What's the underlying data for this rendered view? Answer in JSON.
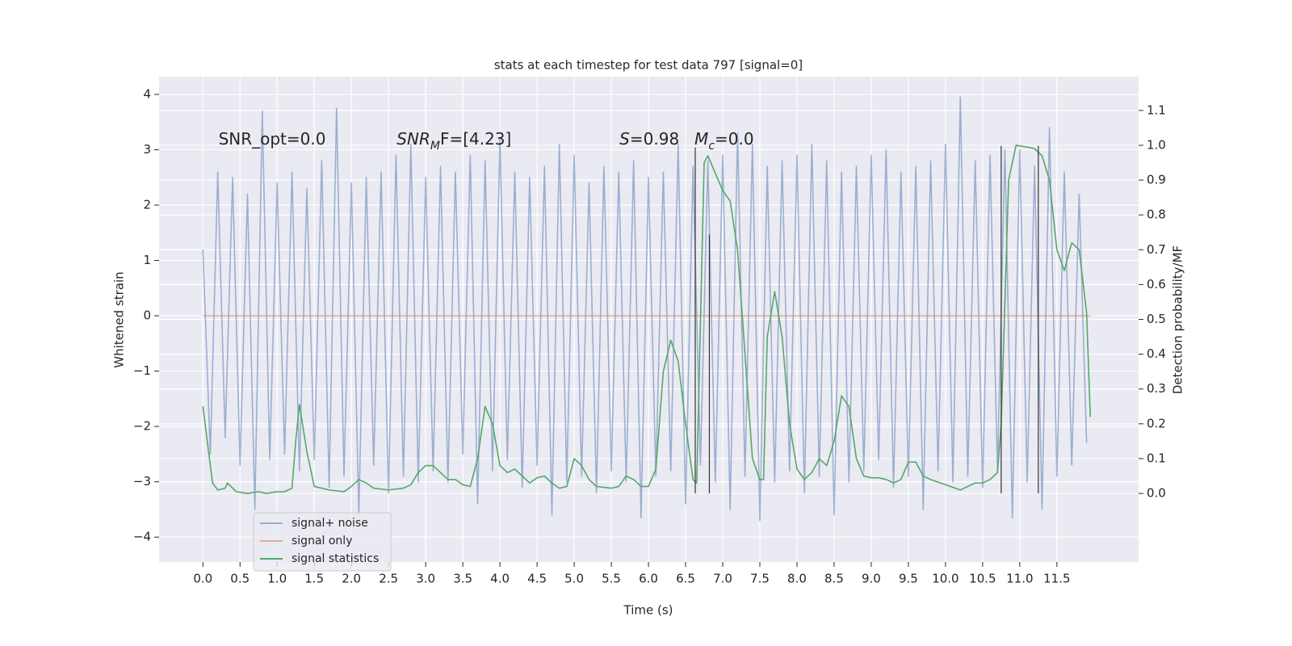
{
  "chart_data": {
    "type": "line",
    "title": "stats at each timestep for test data 797 [signal=0]",
    "xlabel": "Time (s)",
    "ylabel": "Whitened strain",
    "y2label": "Detection probability/MF",
    "xlim": [
      -0.59,
      12.6
    ],
    "ylim": [
      -4.45,
      4.32
    ],
    "y2lim": [
      -0.197,
      1.197
    ],
    "xticks": [
      {
        "value": 0,
        "label": "0.0"
      },
      {
        "value": 0.5,
        "label": "0.5"
      },
      {
        "value": 1,
        "label": "1.0"
      },
      {
        "value": 1.5,
        "label": "1.5"
      },
      {
        "value": 2,
        "label": "2.0"
      },
      {
        "value": 2.5,
        "label": "2.5"
      },
      {
        "value": 3,
        "label": "3.0"
      },
      {
        "value": 3.5,
        "label": "3.5"
      },
      {
        "value": 4,
        "label": "4.0"
      },
      {
        "value": 4.5,
        "label": "4.5"
      },
      {
        "value": 5,
        "label": "5.0"
      },
      {
        "value": 5.5,
        "label": "5.5"
      },
      {
        "value": 6,
        "label": "6.0"
      },
      {
        "value": 6.5,
        "label": "6.5"
      },
      {
        "value": 7,
        "label": "7.0"
      },
      {
        "value": 7.5,
        "label": "7.5"
      },
      {
        "value": 8,
        "label": "8.0"
      },
      {
        "value": 8.5,
        "label": "8.5"
      },
      {
        "value": 9,
        "label": "9.0"
      },
      {
        "value": 9.5,
        "label": "9.5"
      },
      {
        "value": 10,
        "label": "10.0"
      },
      {
        "value": 10.5,
        "label": "10.5"
      },
      {
        "value": 11,
        "label": "11.0"
      },
      {
        "value": 11.5,
        "label": "11.5"
      }
    ],
    "yticks": [
      {
        "value": -4,
        "label": "−4"
      },
      {
        "value": -3,
        "label": "−3"
      },
      {
        "value": -2,
        "label": "−2"
      },
      {
        "value": -1,
        "label": "−1"
      },
      0,
      1,
      2,
      3,
      4
    ],
    "y2ticks": [
      {
        "value": 0,
        "label": "0.0"
      },
      {
        "value": 0.1,
        "label": "0.1"
      },
      {
        "value": 0.2,
        "label": "0.2"
      },
      {
        "value": 0.3,
        "label": "0.3"
      },
      {
        "value": 0.4,
        "label": "0.4"
      },
      {
        "value": 0.5,
        "label": "0.5"
      },
      {
        "value": 0.6,
        "label": "0.6"
      },
      {
        "value": 0.7,
        "label": "0.7"
      },
      {
        "value": 0.8,
        "label": "0.8"
      },
      {
        "value": 0.9,
        "label": "0.9"
      },
      {
        "value": 1,
        "label": "1.0"
      },
      {
        "value": 1.1,
        "label": "1.1"
      }
    ],
    "grid": true,
    "legend": "lower left",
    "series": [
      {
        "name": "signal+ noise",
        "color": "#4c72b0",
        "alpha": 0.5,
        "x": [
          0,
          0.1,
          0.2,
          0.3,
          0.4,
          0.5,
          0.6,
          0.7,
          0.8,
          0.9,
          1,
          1.1,
          1.2,
          1.3,
          1.4,
          1.5,
          1.6,
          1.7,
          1.8,
          1.9,
          2,
          2.1,
          2.2,
          2.3,
          2.4,
          2.5,
          2.6,
          2.7,
          2.8,
          2.9,
          3,
          3.1,
          3.2,
          3.3,
          3.4,
          3.5,
          3.6,
          3.7,
          3.8,
          3.9,
          4,
          4.1,
          4.2,
          4.3,
          4.4,
          4.5,
          4.6,
          4.7,
          4.8,
          4.9,
          5,
          5.1,
          5.2,
          5.3,
          5.4,
          5.5,
          5.6,
          5.7,
          5.8,
          5.9,
          6,
          6.1,
          6.2,
          6.3,
          6.4,
          6.5,
          6.6,
          6.7,
          6.8,
          6.9,
          7,
          7.1,
          7.2,
          7.3,
          7.4,
          7.5,
          7.6,
          7.7,
          7.8,
          7.9,
          8,
          8.1,
          8.2,
          8.3,
          8.4,
          8.5,
          8.6,
          8.7,
          8.8,
          8.9,
          9,
          9.1,
          9.2,
          9.3,
          9.4,
          9.5,
          9.6,
          9.7,
          9.8,
          9.9,
          10,
          10.1,
          10.2,
          10.3,
          10.4,
          10.5,
          10.6,
          10.7,
          10.8,
          10.9,
          11,
          11.1,
          11.2,
          11.3,
          11.4,
          11.5,
          11.6,
          11.7,
          11.8,
          11.9
        ],
        "values": [
          1.2,
          -2.5,
          2.6,
          -2.2,
          2.5,
          -2.7,
          2.2,
          -3.5,
          3.7,
          -2.6,
          2.4,
          -2.5,
          2.6,
          -2.8,
          2.3,
          -2.6,
          2.8,
          -3.1,
          3.75,
          -2.9,
          2.4,
          -3.6,
          2.5,
          -2.7,
          2.6,
          -3.2,
          2.9,
          -2.9,
          3.1,
          -3.0,
          2.5,
          -2.8,
          2.7,
          -3.0,
          2.6,
          -2.5,
          2.9,
          -3.4,
          2.8,
          -2.8,
          3.2,
          -2.6,
          2.6,
          -3.1,
          2.5,
          -2.7,
          2.7,
          -3.6,
          3.1,
          -3.0,
          2.9,
          -2.9,
          2.4,
          -3.2,
          2.7,
          -2.8,
          2.6,
          -3.0,
          2.8,
          -3.65,
          2.5,
          -2.9,
          2.6,
          -2.8,
          3.1,
          -3.4,
          2.7,
          -2.7,
          2.8,
          -3.0,
          2.9,
          -3.5,
          3.3,
          -2.9,
          3.1,
          -3.7,
          2.7,
          -3.0,
          2.8,
          -2.8,
          2.9,
          -3.2,
          3.1,
          -2.9,
          2.8,
          -3.6,
          2.6,
          -3.0,
          2.7,
          -2.8,
          2.9,
          -2.6,
          3.0,
          -3.1,
          2.6,
          -2.9,
          2.7,
          -3.5,
          2.8,
          -2.8,
          3.1,
          -3.0,
          3.95,
          -2.9,
          2.8,
          -3.1,
          2.9,
          -2.8,
          3.0,
          -3.65,
          3.0,
          -3.0,
          2.7,
          -3.5,
          3.4,
          -2.9,
          2.6,
          -2.7,
          2.2,
          -2.3
        ]
      },
      {
        "name": "signal only",
        "color": "#dd8452",
        "alpha": 0.6,
        "x": [
          0,
          11.95
        ],
        "values": [
          0,
          0
        ]
      },
      {
        "name": "signal statistics",
        "color": "#55a868",
        "alpha": 1,
        "axis": "y2",
        "x": [
          0,
          0.13,
          0.2,
          0.3,
          0.33,
          0.45,
          0.6,
          0.75,
          0.85,
          1,
          1.1,
          1.2,
          1.25,
          1.3,
          1.4,
          1.5,
          1.7,
          1.9,
          2,
          2.1,
          2.2,
          2.3,
          2.5,
          2.7,
          2.8,
          2.9,
          3,
          3.1,
          3.2,
          3.3,
          3.4,
          3.5,
          3.6,
          3.7,
          3.8,
          3.9,
          4,
          4.1,
          4.2,
          4.3,
          4.4,
          4.5,
          4.6,
          4.7,
          4.8,
          4.9,
          5,
          5.1,
          5.2,
          5.3,
          5.5,
          5.6,
          5.7,
          5.8,
          5.9,
          6,
          6.1,
          6.2,
          6.3,
          6.4,
          6.5,
          6.6,
          6.65,
          6.75,
          6.8,
          6.9,
          7,
          7.1,
          7.2,
          7.3,
          7.4,
          7.5,
          7.55,
          7.6,
          7.7,
          7.8,
          7.9,
          8,
          8.1,
          8.2,
          8.3,
          8.4,
          8.5,
          8.6,
          8.7,
          8.8,
          8.9,
          9,
          9.1,
          9.2,
          9.3,
          9.4,
          9.5,
          9.6,
          9.7,
          9.8,
          10,
          10.2,
          10.3,
          10.4,
          10.5,
          10.6,
          10.7,
          10.75,
          10.85,
          10.95,
          11.1,
          11.2,
          11.3,
          11.4,
          11.5,
          11.6,
          11.7,
          11.8,
          11.9,
          11.95
        ],
        "values": [
          0.25,
          0.03,
          0.01,
          0.015,
          0.03,
          0.005,
          0,
          0.005,
          0,
          0.005,
          0.005,
          0.015,
          0.15,
          0.255,
          0.12,
          0.02,
          0.01,
          0.005,
          0.02,
          0.04,
          0.03,
          0.015,
          0.01,
          0.015,
          0.025,
          0.06,
          0.08,
          0.08,
          0.06,
          0.04,
          0.04,
          0.025,
          0.02,
          0.1,
          0.25,
          0.2,
          0.08,
          0.06,
          0.07,
          0.05,
          0.03,
          0.045,
          0.05,
          0.03,
          0.015,
          0.02,
          0.1,
          0.08,
          0.04,
          0.02,
          0.015,
          0.02,
          0.05,
          0.04,
          0.02,
          0.02,
          0.07,
          0.35,
          0.44,
          0.38,
          0.2,
          0.04,
          0.03,
          0.95,
          0.97,
          0.92,
          0.87,
          0.84,
          0.7,
          0.4,
          0.1,
          0.04,
          0.04,
          0.45,
          0.58,
          0.45,
          0.2,
          0.07,
          0.04,
          0.06,
          0.1,
          0.08,
          0.15,
          0.28,
          0.25,
          0.1,
          0.05,
          0.045,
          0.045,
          0.04,
          0.03,
          0.04,
          0.09,
          0.09,
          0.05,
          0.04,
          0.025,
          0.01,
          0.02,
          0.03,
          0.03,
          0.04,
          0.06,
          0.2,
          0.9,
          1.0,
          0.995,
          0.99,
          0.97,
          0.9,
          0.7,
          0.64,
          0.72,
          0.7,
          0.52,
          0.22
        ]
      }
    ],
    "vlines": [
      {
        "x": 6.63,
        "ymin": -3.21,
        "ymax": 3.04
      },
      {
        "x": 6.82,
        "ymin": -3.21,
        "ymax": 1.47
      },
      {
        "x": 10.75,
        "ymin": -3.21,
        "ymax": 3.07
      },
      {
        "x": 11.25,
        "ymin": -3.21,
        "ymax": 3.07
      }
    ],
    "annotations": [
      {
        "x": 0.21,
        "y": 3.18,
        "parts": [
          {
            "text": "SNR_opt=0.0"
          }
        ]
      },
      {
        "x": 2.61,
        "y": 3.18,
        "parts": [
          {
            "text": "SNR",
            "italic": true
          },
          {
            "text": "M",
            "italic": true,
            "sub": true
          },
          {
            "text": "F=[4.23]"
          }
        ]
      },
      {
        "x": 5.61,
        "y": 3.18,
        "parts": [
          {
            "text": "S",
            "italic": true
          },
          {
            "text": "=0.98"
          }
        ]
      },
      {
        "x": 6.62,
        "y": 3.18,
        "parts": [
          {
            "text": "M",
            "italic": true
          },
          {
            "text": "c",
            "italic": true,
            "sub": true
          },
          {
            "text": "=0.0"
          }
        ]
      }
    ]
  }
}
